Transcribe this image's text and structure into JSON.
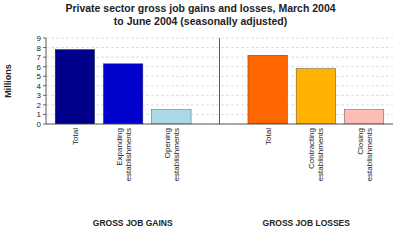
{
  "chart_data": {
    "type": "bar",
    "title": "Private sector gross job gains and losses, March 2004\nto June 2004 (seasonally adjusted)",
    "categories": [
      "Total",
      "Expanding\nestablishments",
      "Opening\nestablishments",
      "Total",
      "Contracting\nestablishments",
      "Closing\nestablishments"
    ],
    "values": [
      7.8,
      6.3,
      1.5,
      7.2,
      5.8,
      1.5
    ],
    "colors": [
      "#00008B",
      "#0000CD",
      "#ADD8E6",
      "#FF6600",
      "#FFB300",
      "#FDBCB4"
    ],
    "annotations": [
      "GROSS JOB GAINS",
      "GROSS JOB LOSSES"
    ],
    "ylabel": "Millions",
    "ylim": [
      0,
      9
    ],
    "yticks": [
      0,
      1,
      2,
      3,
      4,
      5,
      6,
      7,
      8,
      9
    ],
    "grid": true
  }
}
